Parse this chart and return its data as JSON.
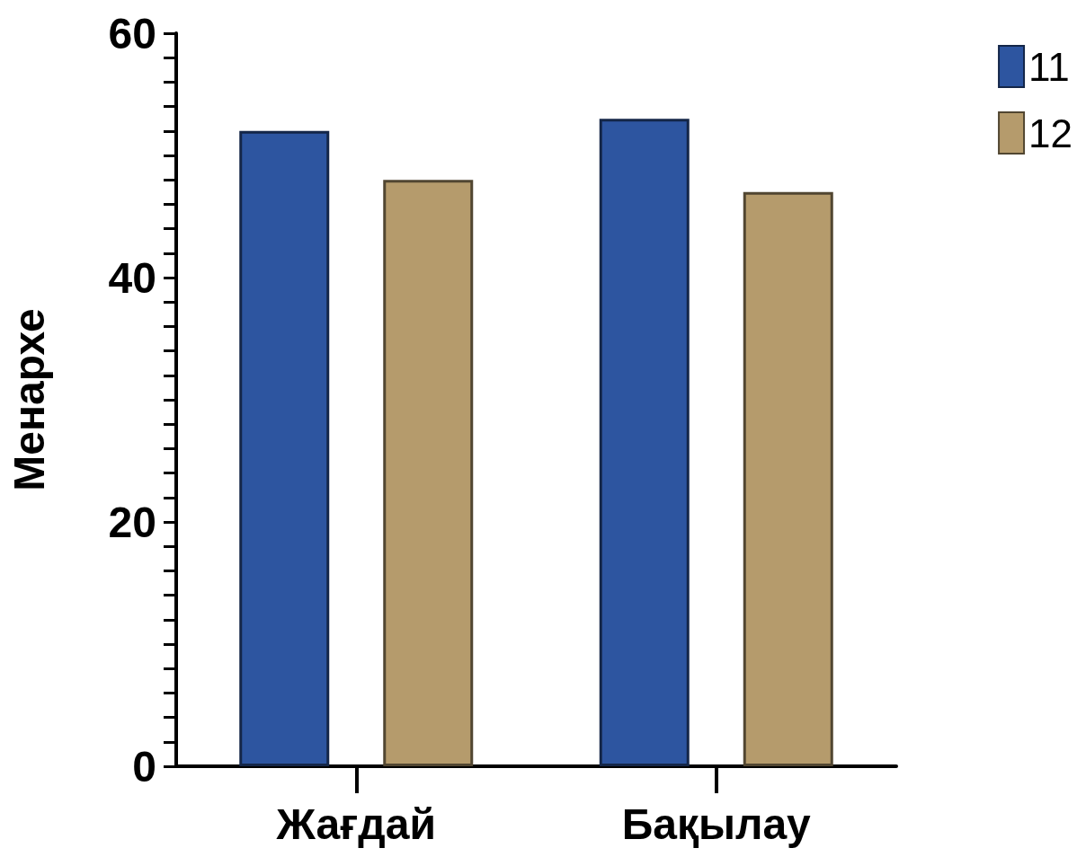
{
  "chart_data": {
    "type": "bar",
    "ylabel": "Менархе",
    "categories": [
      "Жағдай",
      "Бақылау"
    ],
    "series": [
      {
        "name": "11",
        "color": "#2d55a0",
        "values": [
          52,
          53
        ]
      },
      {
        "name": "12",
        "color": "#b59b6c",
        "values": [
          48,
          47
        ]
      }
    ],
    "ylim": [
      0,
      60
    ],
    "yticks": [
      0,
      {
        "value": 2,
        "label": null
      },
      {
        "value": 4,
        "label": null
      },
      {
        "value": 6,
        "label": null
      },
      {
        "value": 8,
        "label": null
      },
      {
        "value": 10,
        "label": null
      },
      {
        "value": 12,
        "label": null
      },
      {
        "value": 14,
        "label": null
      },
      {
        "value": 16,
        "label": null
      },
      {
        "value": 18,
        "label": null
      },
      20,
      {
        "value": 22,
        "label": null
      },
      {
        "value": 24,
        "label": null
      },
      {
        "value": 26,
        "label": null
      },
      {
        "value": 28,
        "label": null
      },
      {
        "value": 30,
        "label": null
      },
      {
        "value": 32,
        "label": null
      },
      {
        "value": 34,
        "label": null
      },
      {
        "value": 36,
        "label": null
      },
      {
        "value": 38,
        "label": null
      },
      40,
      {
        "value": 42,
        "label": null
      },
      {
        "value": 44,
        "label": null
      },
      {
        "value": 46,
        "label": null
      },
      {
        "value": 48,
        "label": null
      },
      {
        "value": 50,
        "label": null
      },
      {
        "value": 52,
        "label": null
      },
      {
        "value": 54,
        "label": null
      },
      {
        "value": 56,
        "label": null
      },
      {
        "value": 58,
        "label": null
      },
      60
    ],
    "grid": false,
    "legend": "top right"
  }
}
